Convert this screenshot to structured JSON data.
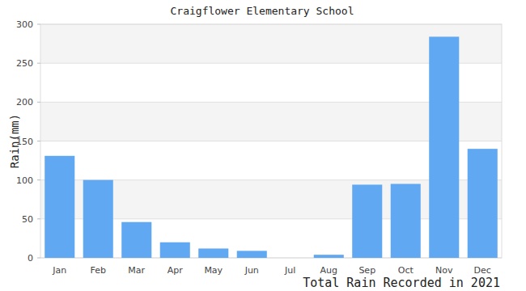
{
  "chart_data": {
    "type": "bar",
    "title": "Craigflower Elementary School",
    "x_label": "Total Rain Recorded in 2021",
    "y_label": "Rain(mm)",
    "categories": [
      "Jan",
      "Feb",
      "Mar",
      "Apr",
      "May",
      "Jun",
      "Jul",
      "Aug",
      "Sep",
      "Oct",
      "Nov",
      "Dec"
    ],
    "values": [
      131,
      100,
      46,
      20,
      12,
      9,
      0,
      4,
      94,
      95,
      284,
      140
    ],
    "color": "#60a9f2",
    "ylim": [
      0,
      300
    ],
    "yticks": [
      0,
      50,
      100,
      150,
      200,
      250,
      300
    ],
    "grid": true
  }
}
